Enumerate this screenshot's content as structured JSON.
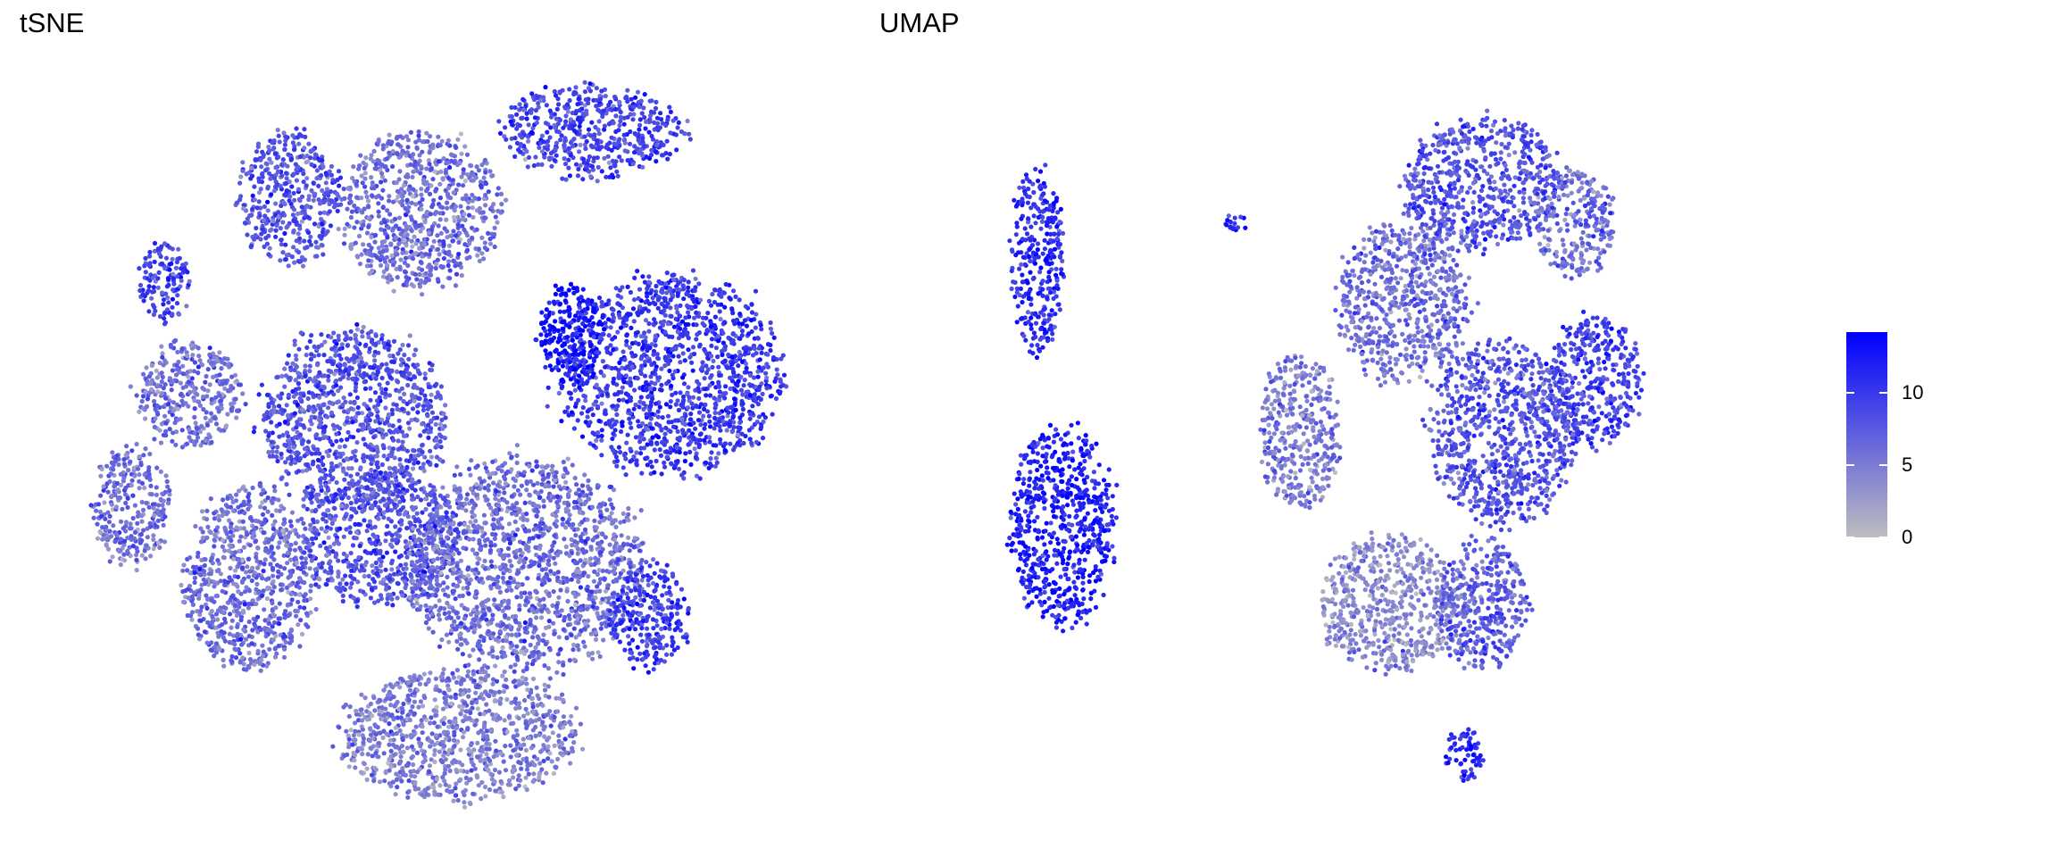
{
  "chart_data": [
    {
      "type": "scatter",
      "title": "tSNE",
      "xlim": [
        -55,
        55
      ],
      "ylim": [
        -70,
        70
      ],
      "axes_visible": false,
      "grid": false,
      "point_size_note": "small dots",
      "clusters": [
        {
          "x": 30,
          "y": 48,
          "sx": 14,
          "sy": 7,
          "mean_value": 9
        },
        {
          "x": 42,
          "y": 11,
          "sx": 17,
          "sy": 15,
          "mean_value": 10
        },
        {
          "x": 27,
          "y": 17,
          "sx": 5,
          "sy": 8,
          "mean_value": 13
        },
        {
          "x": -16,
          "y": 38,
          "sx": 8,
          "sy": 10,
          "mean_value": 8
        },
        {
          "x": 4,
          "y": 36,
          "sx": 12,
          "sy": 12,
          "mean_value": 6
        },
        {
          "x": -35,
          "y": 25,
          "sx": 4,
          "sy": 6,
          "mean_value": 9
        },
        {
          "x": -31,
          "y": 8,
          "sx": 8,
          "sy": 8,
          "mean_value": 6
        },
        {
          "x": -40,
          "y": -9,
          "sx": 6,
          "sy": 9,
          "mean_value": 6
        },
        {
          "x": -6,
          "y": 4,
          "sx": 14,
          "sy": 14,
          "mean_value": 8
        },
        {
          "x": -2,
          "y": -14,
          "sx": 12,
          "sy": 10,
          "mean_value": 8
        },
        {
          "x": -22,
          "y": -20,
          "sx": 10,
          "sy": 14,
          "mean_value": 6
        },
        {
          "x": 20,
          "y": -18,
          "sx": 18,
          "sy": 16,
          "mean_value": 6
        },
        {
          "x": 10,
          "y": -44,
          "sx": 18,
          "sy": 10,
          "mean_value": 5
        },
        {
          "x": 39,
          "y": -26,
          "sx": 6,
          "sy": 8,
          "mean_value": 10
        }
      ]
    },
    {
      "type": "scatter",
      "title": "UMAP",
      "xlim": [
        -12,
        16
      ],
      "ylim": [
        -14,
        14
      ],
      "axes_visible": false,
      "grid": false,
      "clusters": [
        {
          "x": -9.75,
          "y": 7.5,
          "sx": 1,
          "sy": 3.5,
          "mean_value": 11
        },
        {
          "x": -8.75,
          "y": -2.5,
          "sx": 2,
          "sy": 3.75,
          "mean_value": 12
        },
        {
          "x": -2.25,
          "y": 9,
          "sx": 0.5,
          "sy": 0.4,
          "mean_value": 11
        },
        {
          "x": 0.25,
          "y": 1,
          "sx": 1.5,
          "sy": 3,
          "mean_value": 5
        },
        {
          "x": 4.25,
          "y": 6,
          "sx": 2.5,
          "sy": 3,
          "mean_value": 6
        },
        {
          "x": 7.25,
          "y": 10.5,
          "sx": 3,
          "sy": 2.5,
          "mean_value": 8
        },
        {
          "x": 10.75,
          "y": 9,
          "sx": 1.5,
          "sy": 2,
          "mean_value": 6
        },
        {
          "x": 11.5,
          "y": 3,
          "sx": 1.75,
          "sy": 2.5,
          "mean_value": 9
        },
        {
          "x": 8,
          "y": 1,
          "sx": 2.75,
          "sy": 3.5,
          "mean_value": 8
        },
        {
          "x": 3.75,
          "y": -5.5,
          "sx": 2.75,
          "sy": 2.5,
          "mean_value": 4
        },
        {
          "x": 7.25,
          "y": -5.5,
          "sx": 1.75,
          "sy": 2.5,
          "mean_value": 7
        },
        {
          "x": 6.5,
          "y": -11.25,
          "sx": 0.75,
          "sy": 1,
          "mean_value": 11
        }
      ]
    }
  ],
  "colorbar": {
    "low_color": "#BEBEBE",
    "high_color": "#0000FF",
    "range": [
      0,
      14.2
    ],
    "ticks": [
      "0",
      "5",
      "10"
    ],
    "tick_values": [
      0,
      5,
      10
    ]
  }
}
